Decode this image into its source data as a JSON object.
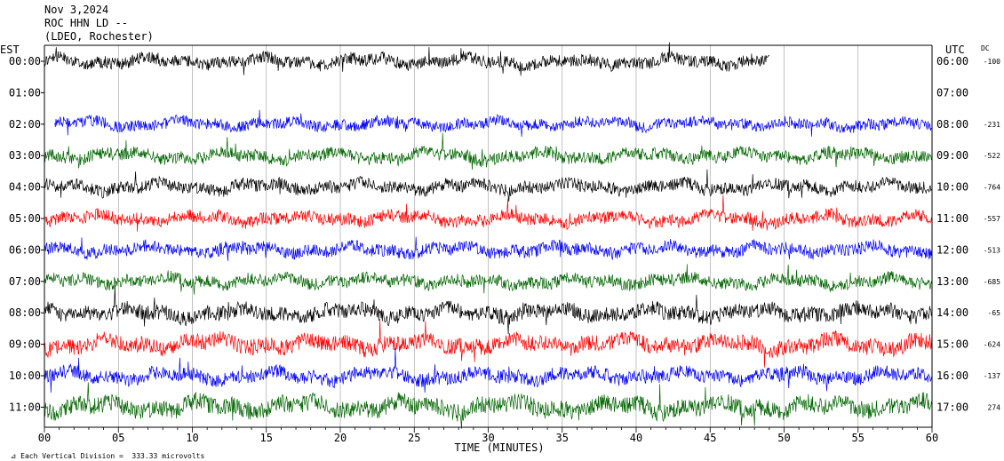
{
  "header": {
    "date": "Nov 3,2024",
    "station": "ROC HHN LD --",
    "network": "(LDEO, Rochester)"
  },
  "labels": {
    "left_zone": "EST",
    "right_zone": "UTC",
    "dc": "DC",
    "xlabel": "TIME (MINUTES)",
    "footnote": "Each Vertical Division =  333.33 microvolts"
  },
  "colors": {
    "cycle": [
      "#000000",
      "#0000ff",
      "#006400",
      "#000000",
      "#ff0000",
      "#0000ff",
      "#006400",
      "#000000",
      "#ff0000",
      "#0000ff",
      "#006400"
    ],
    "grid": "#999999",
    "axis": "#000000"
  },
  "chart_data": {
    "type": "line",
    "xlim": [
      0,
      60
    ],
    "x_ticks": [
      "00",
      "05",
      "10",
      "15",
      "20",
      "25",
      "30",
      "35",
      "40",
      "45",
      "50",
      "55",
      "60"
    ],
    "rows": [
      {
        "est": "00:00",
        "utc": "06:00",
        "dc": "-100",
        "color": "#000000",
        "start": 0,
        "end": 49,
        "amp": 1.0
      },
      {
        "est": "01:00",
        "utc": "07:00",
        "dc": "",
        "color": null,
        "start": 0,
        "end": 0,
        "amp": 0
      },
      {
        "est": "02:00",
        "utc": "08:00",
        "dc": "-231",
        "color": "#0000ff",
        "start": 0.7,
        "end": 60,
        "amp": 0.9
      },
      {
        "est": "03:00",
        "utc": "09:00",
        "dc": "-522",
        "color": "#006400",
        "start": 0,
        "end": 60,
        "amp": 1.0
      },
      {
        "est": "04:00",
        "utc": "10:00",
        "dc": "-764",
        "color": "#000000",
        "start": 0,
        "end": 60,
        "amp": 1.0
      },
      {
        "est": "05:00",
        "utc": "11:00",
        "dc": "-557",
        "color": "#ff0000",
        "start": 0,
        "end": 60,
        "amp": 1.0
      },
      {
        "est": "06:00",
        "utc": "12:00",
        "dc": "-513",
        "color": "#0000ff",
        "start": 0,
        "end": 60,
        "amp": 1.0
      },
      {
        "est": "07:00",
        "utc": "13:00",
        "dc": "-685",
        "color": "#006400",
        "start": 0,
        "end": 60,
        "amp": 1.0
      },
      {
        "est": "08:00",
        "utc": "14:00",
        "dc": "-65",
        "color": "#000000",
        "start": 0,
        "end": 60,
        "amp": 1.2
      },
      {
        "est": "09:00",
        "utc": "15:00",
        "dc": "-624",
        "color": "#ff0000",
        "start": 0,
        "end": 60,
        "amp": 1.3
      },
      {
        "est": "10:00",
        "utc": "16:00",
        "dc": "-137",
        "color": "#0000ff",
        "start": 0,
        "end": 60,
        "amp": 1.1
      },
      {
        "est": "11:00",
        "utc": "17:00",
        "dc": "274",
        "color": "#006400",
        "start": 0,
        "end": 60,
        "amp": 1.4
      }
    ]
  }
}
